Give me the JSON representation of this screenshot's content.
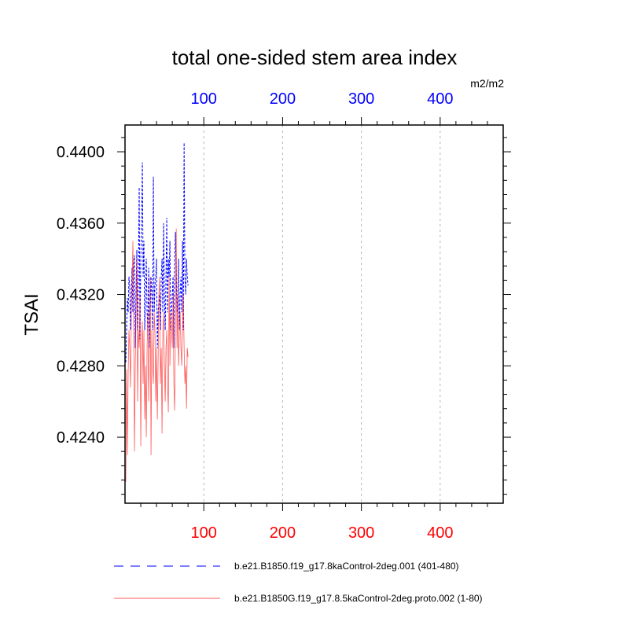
{
  "chart_data": {
    "type": "line",
    "title": "total one-sided stem area index",
    "units": "m2/m2",
    "ylabel": "TSAI",
    "xlabel": "",
    "xlim": [
      0,
      480
    ],
    "ylim": [
      0.4203,
      0.4415
    ],
    "yticks": [
      0.424,
      0.428,
      0.432,
      0.436,
      0.44
    ],
    "ytick_labels": [
      "0.4240",
      "0.4280",
      "0.4320",
      "0.4360",
      "0.4400"
    ],
    "bottom_xticks": [
      100,
      200,
      300,
      400
    ],
    "bottom_xtick_labels": [
      "100",
      "200",
      "300",
      "400"
    ],
    "top_xticks": [
      100,
      200,
      300,
      400
    ],
    "top_xtick_labels": [
      "100",
      "200",
      "300",
      "400"
    ],
    "grid": "vertical dashed at x ticks",
    "legend_position": "bottom",
    "series": [
      {
        "name": "b.e21.B1850.f19_g17.8kaControl-2deg.001 (401-480)",
        "color": "#0000ff",
        "style": "dashed",
        "axis": "top",
        "x": [
          1,
          2,
          3,
          4,
          5,
          6,
          7,
          8,
          9,
          10,
          11,
          12,
          13,
          14,
          15,
          16,
          17,
          18,
          19,
          20,
          21,
          22,
          23,
          24,
          25,
          26,
          27,
          28,
          29,
          30,
          31,
          32,
          33,
          34,
          35,
          36,
          37,
          38,
          39,
          40,
          41,
          42,
          43,
          44,
          45,
          46,
          47,
          48,
          49,
          50,
          51,
          52,
          53,
          54,
          55,
          56,
          57,
          58,
          59,
          60,
          61,
          62,
          63,
          64,
          65,
          66,
          67,
          68,
          69,
          70,
          71,
          72,
          73,
          74,
          75,
          76,
          77,
          78,
          79,
          80
        ],
        "values": [
          0.4282,
          0.43,
          0.4318,
          0.431,
          0.433,
          0.4325,
          0.43,
          0.432,
          0.4335,
          0.431,
          0.4338,
          0.4342,
          0.429,
          0.4322,
          0.4345,
          0.43,
          0.433,
          0.438,
          0.4295,
          0.434,
          0.436,
          0.4394,
          0.433,
          0.435,
          0.43,
          0.432,
          0.434,
          0.431,
          0.43,
          0.4335,
          0.429,
          0.431,
          0.433,
          0.432,
          0.43,
          0.4386,
          0.431,
          0.4325,
          0.433,
          0.434,
          0.429,
          0.431,
          0.4315,
          0.432,
          0.43,
          0.433,
          0.434,
          0.431,
          0.436,
          0.432,
          0.43,
          0.433,
          0.4363,
          0.431,
          0.434,
          0.433,
          0.435,
          0.43,
          0.431,
          0.432,
          0.433,
          0.429,
          0.434,
          0.4355,
          0.433,
          0.431,
          0.432,
          0.434,
          0.43,
          0.432,
          0.433,
          0.431,
          0.435,
          0.43,
          0.4405,
          0.433,
          0.432,
          0.434,
          0.433,
          0.4325
        ]
      },
      {
        "name": "b.e21.B1850G.f19_g17.8.5kaControl-2deg.proto.002 (1-80)",
        "color": "#ff0000",
        "style": "solid",
        "axis": "bottom",
        "x": [
          1,
          2,
          3,
          4,
          5,
          6,
          7,
          8,
          9,
          10,
          11,
          12,
          13,
          14,
          15,
          16,
          17,
          18,
          19,
          20,
          21,
          22,
          23,
          24,
          25,
          26,
          27,
          28,
          29,
          30,
          31,
          32,
          33,
          34,
          35,
          36,
          37,
          38,
          39,
          40,
          41,
          42,
          43,
          44,
          45,
          46,
          47,
          48,
          49,
          50,
          51,
          52,
          53,
          54,
          55,
          56,
          57,
          58,
          59,
          60,
          61,
          62,
          63,
          64,
          65,
          66,
          67,
          68,
          69,
          70,
          71,
          72,
          73,
          74,
          75,
          76,
          77,
          78,
          79,
          80
        ],
        "values": [
          0.4215,
          0.4278,
          0.423,
          0.4276,
          0.43,
          0.429,
          0.4268,
          0.431,
          0.4325,
          0.435,
          0.43,
          0.4232,
          0.428,
          0.431,
          0.434,
          0.426,
          0.43,
          0.429,
          0.432,
          0.4235,
          0.429,
          0.4305,
          0.427,
          0.43,
          0.425,
          0.428,
          0.424,
          0.429,
          0.431,
          0.426,
          0.429,
          0.433,
          0.423,
          0.43,
          0.428,
          0.427,
          0.431,
          0.43,
          0.426,
          0.429,
          0.425,
          0.4282,
          0.432,
          0.433,
          0.427,
          0.429,
          0.4242,
          0.43,
          0.431,
          0.428,
          0.426,
          0.429,
          0.43,
          0.427,
          0.4254,
          0.433,
          0.428,
          0.431,
          0.43,
          0.429,
          0.432,
          0.427,
          0.4255,
          0.43,
          0.4357,
          0.429,
          0.432,
          0.428,
          0.43,
          0.431,
          0.429,
          0.428,
          0.43,
          0.432,
          0.429,
          0.427,
          0.428,
          0.4256,
          0.429,
          0.4285
        ]
      }
    ]
  }
}
